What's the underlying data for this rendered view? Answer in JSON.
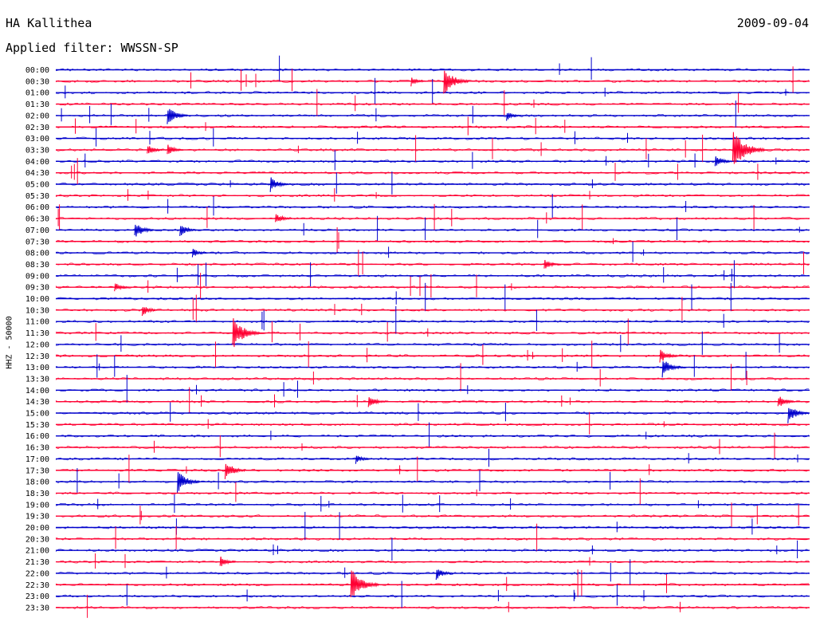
{
  "header": {
    "station": "HA Kallithea",
    "date": "2009-09-04",
    "filter": "Applied filter: WWSSN-SP",
    "channel": "HHZ - 50000"
  },
  "colors": {
    "even_row": "#0000cc",
    "odd_row": "#ff0033"
  },
  "chart_data": {
    "type": "helicorder",
    "title": "HA Kallithea",
    "date": "2009-09-04",
    "filter": "WWSSN-SP",
    "ylabel": "HHZ - 50000",
    "row_minutes": 30,
    "row_labels": [
      "00:00",
      "00:30",
      "01:00",
      "01:30",
      "02:00",
      "02:30",
      "03:00",
      "03:30",
      "04:00",
      "04:30",
      "05:00",
      "05:30",
      "06:00",
      "06:30",
      "07:00",
      "07:30",
      "08:00",
      "08:30",
      "09:00",
      "09:30",
      "10:00",
      "10:30",
      "11:00",
      "11:30",
      "12:00",
      "12:30",
      "13:00",
      "13:30",
      "14:00",
      "14:30",
      "15:00",
      "15:30",
      "16:00",
      "16:30",
      "17:00",
      "17:30",
      "18:00",
      "18:30",
      "19:00",
      "19:30",
      "20:00",
      "20:30",
      "21:00",
      "21:30",
      "22:00",
      "22:30",
      "23:00",
      "23:30"
    ],
    "events": [
      {
        "row": 1,
        "minute": 15.5,
        "amp": 1.4
      },
      {
        "row": 1,
        "minute": 14.2,
        "amp": 0.5
      },
      {
        "row": 4,
        "minute": 4.5,
        "amp": 1.0
      },
      {
        "row": 4,
        "minute": 18.0,
        "amp": 0.5
      },
      {
        "row": 7,
        "minute": 3.7,
        "amp": 0.6
      },
      {
        "row": 7,
        "minute": 4.5,
        "amp": 0.6
      },
      {
        "row": 7,
        "minute": 27.0,
        "amp": 2.0
      },
      {
        "row": 8,
        "minute": 26.3,
        "amp": 0.7
      },
      {
        "row": 10,
        "minute": 8.6,
        "amp": 0.8
      },
      {
        "row": 13,
        "minute": 8.8,
        "amp": 0.6
      },
      {
        "row": 14,
        "minute": 3.2,
        "amp": 0.9
      },
      {
        "row": 14,
        "minute": 5.0,
        "amp": 0.7
      },
      {
        "row": 16,
        "minute": 5.5,
        "amp": 0.5
      },
      {
        "row": 17,
        "minute": 19.5,
        "amp": 0.6
      },
      {
        "row": 19,
        "minute": 2.4,
        "amp": 0.5
      },
      {
        "row": 21,
        "minute": 3.5,
        "amp": 0.6
      },
      {
        "row": 23,
        "minute": 7.1,
        "amp": 1.6
      },
      {
        "row": 25,
        "minute": 24.1,
        "amp": 0.8
      },
      {
        "row": 26,
        "minute": 24.2,
        "amp": 1.0
      },
      {
        "row": 29,
        "minute": 12.5,
        "amp": 0.7
      },
      {
        "row": 29,
        "minute": 28.8,
        "amp": 0.7
      },
      {
        "row": 30,
        "minute": 29.2,
        "amp": 1.0
      },
      {
        "row": 34,
        "minute": 12.0,
        "amp": 0.5
      },
      {
        "row": 35,
        "minute": 6.8,
        "amp": 1.0
      },
      {
        "row": 36,
        "minute": 4.9,
        "amp": 1.2
      },
      {
        "row": 43,
        "minute": 6.6,
        "amp": 0.6
      },
      {
        "row": 44,
        "minute": 15.2,
        "amp": 0.7
      },
      {
        "row": 45,
        "minute": 11.8,
        "amp": 1.7
      }
    ]
  }
}
